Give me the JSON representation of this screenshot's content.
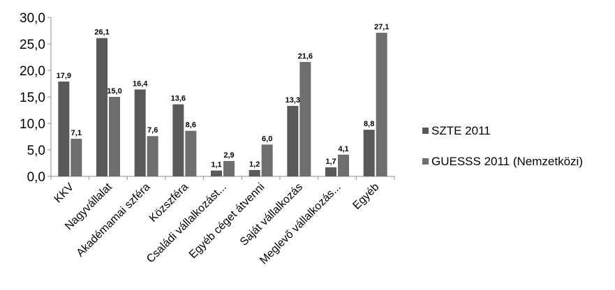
{
  "chart_data": {
    "type": "bar",
    "title": "",
    "xlabel": "",
    "ylabel": "",
    "ylim": [
      0,
      30
    ],
    "yticks": [
      "0,0",
      "5,0",
      "10,0",
      "15,0",
      "20,0",
      "25,0",
      "30,0"
    ],
    "grid": false,
    "legend_position": "right",
    "categories": [
      "KKV",
      "Nagyvállalat",
      "Akadémamai szféra",
      "Közszféra",
      "Családi vállalkozást...",
      "Egyéb céget átvenni",
      "Saját vállalkozás",
      "Meglevő vállalkozás...",
      "Egyéb"
    ],
    "series": [
      {
        "name": "SZTE 2011",
        "color": "#595959",
        "values": [
          17.9,
          26.1,
          16.4,
          13.6,
          1.1,
          1.2,
          13.3,
          1.7,
          8.8
        ],
        "labels": [
          "17,9",
          "26,1",
          "16,4",
          "13,6",
          "1,1",
          "1,2",
          "13,3",
          "1,7",
          "8,8"
        ]
      },
      {
        "name": "GUESSS 2011 (Nemzetközi)",
        "color": "#6e6e6e",
        "values": [
          7.1,
          15.0,
          7.6,
          8.6,
          2.9,
          6.0,
          21.6,
          4.1,
          27.1
        ],
        "labels": [
          "7,1",
          "15,0",
          "7,6",
          "8,6",
          "2,9",
          "6,0",
          "21,6",
          "4,1",
          "27,1"
        ]
      }
    ]
  }
}
